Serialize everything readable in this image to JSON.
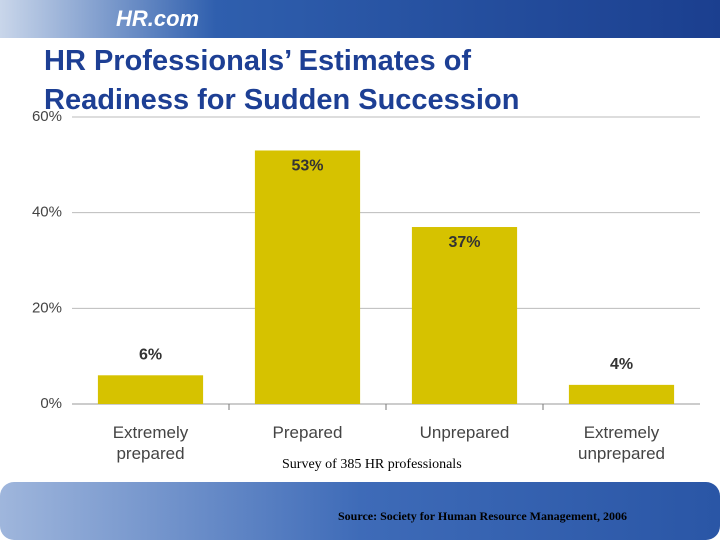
{
  "logo": "HR.com",
  "chart_data": {
    "type": "bar",
    "title": "HR Professionals’ Estimates of Readiness for Sudden Succession",
    "categories": [
      "Extremely prepared",
      "Prepared",
      "Unprepared",
      "Extremely unprepared"
    ],
    "values": [
      6,
      53,
      37,
      4
    ],
    "value_labels": [
      "6%",
      "53%",
      "37%",
      "4%"
    ],
    "color": "#d6c200",
    "ylim": [
      0,
      60
    ],
    "yticks": [
      {
        "value": 0,
        "label": "0%"
      },
      {
        "value": 20,
        "label": "20%"
      },
      {
        "value": 40,
        "label": "40%"
      },
      {
        "value": 60,
        "label": "60%"
      }
    ],
    "grid": true,
    "note": "Survey of 385 HR professionals",
    "source": "Source: Society for Human Resource Management, 2006"
  }
}
